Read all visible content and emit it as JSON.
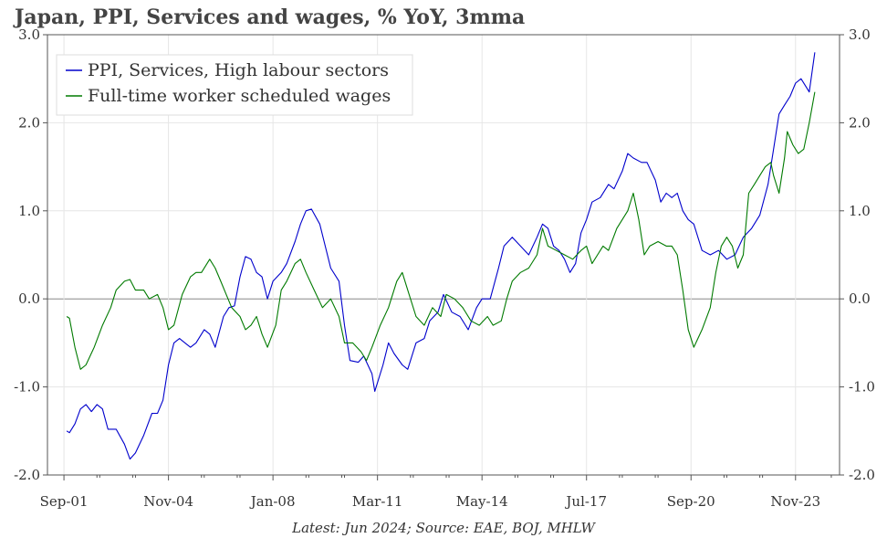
{
  "chart_data": {
    "type": "line",
    "title": "Japan, PPI, Services and wages, % YoY, 3mma",
    "source_note": "Latest: Jun 2024; Source: EAE, BOJ, MHLW",
    "xlabel": "",
    "ylabel": "",
    "x_range": [
      "2001-03",
      "2025-03"
    ],
    "ylim": [
      -2.0,
      3.0
    ],
    "y_ticks": [
      "-2.0",
      "-1.0",
      "0.0",
      "1.0",
      "2.0",
      "3.0"
    ],
    "y_ticks_right": [
      "-2.0",
      "-1.0",
      "0.0",
      "1.0",
      "2.0",
      "3.0"
    ],
    "x_tick_labels": [
      "Sep-01",
      "Nov-04",
      "Jan-08",
      "Mar-11",
      "May-14",
      "Jul-17",
      "Sep-20",
      "Nov-23"
    ],
    "x_tick_dates": [
      "2001-09",
      "2004-11",
      "2008-01",
      "2011-03",
      "2014-05",
      "2017-07",
      "2020-09",
      "2023-11"
    ],
    "grid": true,
    "legend_position": "top-left",
    "colors": {
      "ppi": "#0000cc",
      "wages": "#007a00",
      "zero_line": "#888888",
      "grid": "#e6e6e6"
    },
    "series": [
      {
        "name": "PPI, Services, High labour sectors",
        "color": "#0000cc",
        "points": [
          [
            "2001-10",
            -1.5
          ],
          [
            "2001-11",
            -1.52
          ],
          [
            "2002-01",
            -1.42
          ],
          [
            "2002-03",
            -1.25
          ],
          [
            "2002-05",
            -1.2
          ],
          [
            "2002-07",
            -1.28
          ],
          [
            "2002-09",
            -1.2
          ],
          [
            "2002-11",
            -1.25
          ],
          [
            "2003-01",
            -1.48
          ],
          [
            "2003-04",
            -1.48
          ],
          [
            "2003-07",
            -1.65
          ],
          [
            "2003-09",
            -1.82
          ],
          [
            "2003-11",
            -1.75
          ],
          [
            "2004-02",
            -1.55
          ],
          [
            "2004-05",
            -1.3
          ],
          [
            "2004-07",
            -1.3
          ],
          [
            "2004-09",
            -1.15
          ],
          [
            "2004-11",
            -0.75
          ],
          [
            "2005-01",
            -0.5
          ],
          [
            "2005-03",
            -0.45
          ],
          [
            "2005-05",
            -0.5
          ],
          [
            "2005-07",
            -0.55
          ],
          [
            "2005-09",
            -0.5
          ],
          [
            "2005-12",
            -0.35
          ],
          [
            "2006-02",
            -0.4
          ],
          [
            "2006-04",
            -0.55
          ],
          [
            "2006-07",
            -0.2
          ],
          [
            "2006-09",
            -0.1
          ],
          [
            "2006-11",
            -0.08
          ],
          [
            "2007-01",
            0.25
          ],
          [
            "2007-03",
            0.48
          ],
          [
            "2007-05",
            0.45
          ],
          [
            "2007-07",
            0.3
          ],
          [
            "2007-09",
            0.25
          ],
          [
            "2007-11",
            0.0
          ],
          [
            "2008-01",
            0.2
          ],
          [
            "2008-04",
            0.3
          ],
          [
            "2008-06",
            0.4
          ],
          [
            "2008-09",
            0.65
          ],
          [
            "2008-11",
            0.85
          ],
          [
            "2009-01",
            1.0
          ],
          [
            "2009-03",
            1.02
          ],
          [
            "2009-06",
            0.85
          ],
          [
            "2009-08",
            0.6
          ],
          [
            "2009-10",
            0.35
          ],
          [
            "2010-01",
            0.2
          ],
          [
            "2010-03",
            -0.3
          ],
          [
            "2010-05",
            -0.7
          ],
          [
            "2010-08",
            -0.72
          ],
          [
            "2010-10",
            -0.65
          ],
          [
            "2011-01",
            -0.85
          ],
          [
            "2011-02",
            -1.05
          ],
          [
            "2011-05",
            -0.75
          ],
          [
            "2011-07",
            -0.5
          ],
          [
            "2011-09",
            -0.62
          ],
          [
            "2011-12",
            -0.75
          ],
          [
            "2012-02",
            -0.8
          ],
          [
            "2012-05",
            -0.5
          ],
          [
            "2012-08",
            -0.45
          ],
          [
            "2012-10",
            -0.25
          ],
          [
            "2013-01",
            -0.15
          ],
          [
            "2013-03",
            0.05
          ],
          [
            "2013-06",
            -0.15
          ],
          [
            "2013-09",
            -0.2
          ],
          [
            "2013-12",
            -0.35
          ],
          [
            "2014-03",
            -0.1
          ],
          [
            "2014-05",
            0.0
          ],
          [
            "2014-08",
            0.0
          ],
          [
            "2014-11",
            0.35
          ],
          [
            "2015-01",
            0.6
          ],
          [
            "2015-04",
            0.7
          ],
          [
            "2015-07",
            0.6
          ],
          [
            "2015-10",
            0.5
          ],
          [
            "2016-01",
            0.7
          ],
          [
            "2016-03",
            0.85
          ],
          [
            "2016-05",
            0.8
          ],
          [
            "2016-07",
            0.6
          ],
          [
            "2016-09",
            0.55
          ],
          [
            "2016-11",
            0.45
          ],
          [
            "2017-01",
            0.3
          ],
          [
            "2017-03",
            0.4
          ],
          [
            "2017-05",
            0.75
          ],
          [
            "2017-07",
            0.9
          ],
          [
            "2017-09",
            1.1
          ],
          [
            "2017-12",
            1.15
          ],
          [
            "2018-03",
            1.3
          ],
          [
            "2018-05",
            1.25
          ],
          [
            "2018-08",
            1.45
          ],
          [
            "2018-10",
            1.65
          ],
          [
            "2018-12",
            1.6
          ],
          [
            "2019-03",
            1.55
          ],
          [
            "2019-05",
            1.55
          ],
          [
            "2019-08",
            1.35
          ],
          [
            "2019-10",
            1.1
          ],
          [
            "2019-12",
            1.2
          ],
          [
            "2020-02",
            1.15
          ],
          [
            "2020-04",
            1.2
          ],
          [
            "2020-06",
            1.0
          ],
          [
            "2020-08",
            0.9
          ],
          [
            "2020-10",
            0.85
          ],
          [
            "2021-01",
            0.55
          ],
          [
            "2021-04",
            0.5
          ],
          [
            "2021-07",
            0.55
          ],
          [
            "2021-10",
            0.45
          ],
          [
            "2022-01",
            0.5
          ],
          [
            "2022-04",
            0.7
          ],
          [
            "2022-07",
            0.8
          ],
          [
            "2022-10",
            0.95
          ],
          [
            "2023-01",
            1.3
          ],
          [
            "2023-03",
            1.7
          ],
          [
            "2023-05",
            2.1
          ],
          [
            "2023-07",
            2.2
          ],
          [
            "2023-09",
            2.3
          ],
          [
            "2023-11",
            2.45
          ],
          [
            "2024-01",
            2.5
          ],
          [
            "2024-03",
            2.4
          ],
          [
            "2024-04",
            2.35
          ],
          [
            "2024-06",
            2.8
          ]
        ]
      },
      {
        "name": "Full-time worker scheduled wages",
        "color": "#007a00",
        "points": [
          [
            "2001-10",
            -0.2
          ],
          [
            "2001-11",
            -0.22
          ],
          [
            "2002-01",
            -0.55
          ],
          [
            "2002-03",
            -0.8
          ],
          [
            "2002-05",
            -0.75
          ],
          [
            "2002-08",
            -0.55
          ],
          [
            "2002-11",
            -0.3
          ],
          [
            "2003-02",
            -0.1
          ],
          [
            "2003-04",
            0.1
          ],
          [
            "2003-07",
            0.2
          ],
          [
            "2003-09",
            0.22
          ],
          [
            "2003-11",
            0.1
          ],
          [
            "2004-02",
            0.1
          ],
          [
            "2004-04",
            0.0
          ],
          [
            "2004-07",
            0.05
          ],
          [
            "2004-09",
            -0.1
          ],
          [
            "2004-11",
            -0.35
          ],
          [
            "2005-01",
            -0.3
          ],
          [
            "2005-04",
            0.05
          ],
          [
            "2005-07",
            0.25
          ],
          [
            "2005-09",
            0.3
          ],
          [
            "2005-11",
            0.3
          ],
          [
            "2006-02",
            0.45
          ],
          [
            "2006-04",
            0.35
          ],
          [
            "2006-06",
            0.2
          ],
          [
            "2006-08",
            0.05
          ],
          [
            "2006-10",
            -0.1
          ],
          [
            "2007-01",
            -0.2
          ],
          [
            "2007-03",
            -0.35
          ],
          [
            "2007-05",
            -0.3
          ],
          [
            "2007-07",
            -0.2
          ],
          [
            "2007-09",
            -0.4
          ],
          [
            "2007-11",
            -0.55
          ],
          [
            "2008-02",
            -0.3
          ],
          [
            "2008-04",
            0.1
          ],
          [
            "2008-06",
            0.2
          ],
          [
            "2008-09",
            0.4
          ],
          [
            "2008-11",
            0.45
          ],
          [
            "2009-01",
            0.3
          ],
          [
            "2009-04",
            0.1
          ],
          [
            "2009-07",
            -0.1
          ],
          [
            "2009-10",
            0.0
          ],
          [
            "2010-01",
            -0.2
          ],
          [
            "2010-03",
            -0.5
          ],
          [
            "2010-06",
            -0.5
          ],
          [
            "2010-09",
            -0.6
          ],
          [
            "2010-11",
            -0.7
          ],
          [
            "2011-01",
            -0.55
          ],
          [
            "2011-04",
            -0.3
          ],
          [
            "2011-07",
            -0.1
          ],
          [
            "2011-10",
            0.2
          ],
          [
            "2011-12",
            0.3
          ],
          [
            "2012-02",
            0.1
          ],
          [
            "2012-05",
            -0.2
          ],
          [
            "2012-08",
            -0.3
          ],
          [
            "2012-11",
            -0.1
          ],
          [
            "2013-02",
            -0.2
          ],
          [
            "2013-04",
            0.05
          ],
          [
            "2013-07",
            0.0
          ],
          [
            "2013-10",
            -0.1
          ],
          [
            "2014-01",
            -0.25
          ],
          [
            "2014-04",
            -0.3
          ],
          [
            "2014-07",
            -0.2
          ],
          [
            "2014-09",
            -0.3
          ],
          [
            "2014-12",
            -0.25
          ],
          [
            "2015-02",
            0.0
          ],
          [
            "2015-04",
            0.2
          ],
          [
            "2015-07",
            0.3
          ],
          [
            "2015-10",
            0.35
          ],
          [
            "2016-01",
            0.5
          ],
          [
            "2016-03",
            0.8
          ],
          [
            "2016-05",
            0.6
          ],
          [
            "2016-08",
            0.55
          ],
          [
            "2016-11",
            0.5
          ],
          [
            "2017-02",
            0.45
          ],
          [
            "2017-05",
            0.55
          ],
          [
            "2017-07",
            0.6
          ],
          [
            "2017-09",
            0.4
          ],
          [
            "2017-11",
            0.5
          ],
          [
            "2018-01",
            0.6
          ],
          [
            "2018-03",
            0.55
          ],
          [
            "2018-06",
            0.8
          ],
          [
            "2018-08",
            0.9
          ],
          [
            "2018-10",
            1.0
          ],
          [
            "2018-12",
            1.2
          ],
          [
            "2019-02",
            0.9
          ],
          [
            "2019-04",
            0.5
          ],
          [
            "2019-06",
            0.6
          ],
          [
            "2019-09",
            0.65
          ],
          [
            "2019-12",
            0.6
          ],
          [
            "2020-02",
            0.6
          ],
          [
            "2020-04",
            0.5
          ],
          [
            "2020-06",
            0.1
          ],
          [
            "2020-08",
            -0.35
          ],
          [
            "2020-10",
            -0.55
          ],
          [
            "2021-01",
            -0.35
          ],
          [
            "2021-04",
            -0.1
          ],
          [
            "2021-06",
            0.3
          ],
          [
            "2021-08",
            0.6
          ],
          [
            "2021-10",
            0.7
          ],
          [
            "2021-12",
            0.6
          ],
          [
            "2022-02",
            0.35
          ],
          [
            "2022-04",
            0.5
          ],
          [
            "2022-06",
            1.2
          ],
          [
            "2022-08",
            1.3
          ],
          [
            "2022-10",
            1.4
          ],
          [
            "2022-12",
            1.5
          ],
          [
            "2023-02",
            1.55
          ],
          [
            "2023-03",
            1.4
          ],
          [
            "2023-05",
            1.2
          ],
          [
            "2023-07",
            1.6
          ],
          [
            "2023-08",
            1.9
          ],
          [
            "2023-10",
            1.75
          ],
          [
            "2023-12",
            1.65
          ],
          [
            "2024-02",
            1.7
          ],
          [
            "2024-04",
            2.0
          ],
          [
            "2024-06",
            2.35
          ]
        ]
      }
    ]
  }
}
